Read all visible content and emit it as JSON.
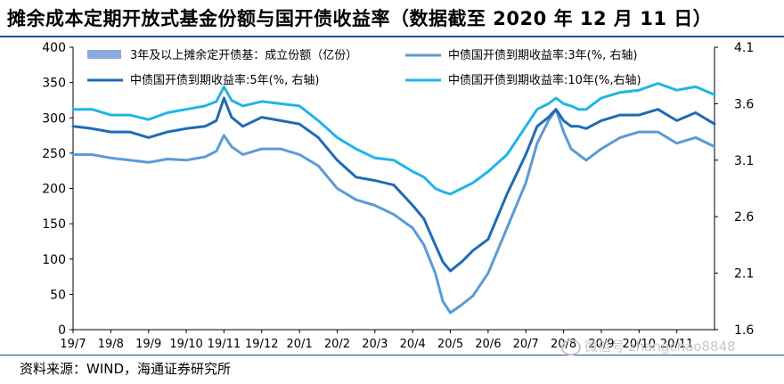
{
  "page_title": "摊余成本定期开放式基金份额与国开债收益率（数据截至 2020 年 12 月 11 日）",
  "source": "资料来源：WIND，海通证券研究所",
  "watermark": "微信号 zhangchao8848",
  "colors": {
    "bars": "#8ea9db",
    "y3": "#5b9bd5",
    "y5": "#1f6bb5",
    "y10": "#1fb5e8",
    "rule": "#1f4e9c"
  },
  "chart_data": {
    "type": "line",
    "x_tick_labels": [
      "19/7",
      "19/8",
      "19/9",
      "19/10",
      "19/11",
      "19/12",
      "20/1",
      "20/2",
      "20/3",
      "20/4",
      "20/5",
      "20/6",
      "20/7",
      "20/8",
      "20/9",
      "20/10",
      "20/11"
    ],
    "x_range": [
      0,
      17
    ],
    "y_left": {
      "range": [
        0,
        400
      ],
      "ticks": [
        0,
        50,
        100,
        150,
        200,
        250,
        300,
        350,
        400
      ]
    },
    "y_right": {
      "range": [
        1.6,
        4.1
      ],
      "ticks": [
        "1.6",
        "2.1",
        "2.6",
        "3.1",
        "3.6",
        "4.1"
      ]
    },
    "legend": [
      "3年及以上摊余定开债基：成立份额（亿份）",
      "中债国开债到期收益率:3年(%, 右轴)",
      "中债国开债到期收益率:5年(%, 右轴)",
      "中债国开债到期收益率:10年(%,右轴)"
    ],
    "series": [
      {
        "name": "中债国开债到期收益率:3年(%, 右轴)",
        "axis": "right",
        "x": [
          0,
          0.5,
          1.0,
          1.5,
          2.0,
          2.5,
          3.0,
          3.5,
          3.8,
          4.0,
          4.2,
          4.5,
          5.0,
          5.5,
          6.0,
          6.5,
          7.0,
          7.5,
          8.0,
          8.5,
          9.0,
          9.3,
          9.6,
          9.8,
          10.0,
          10.3,
          10.6,
          11.0,
          11.5,
          12.0,
          12.3,
          12.6,
          12.8,
          13.0,
          13.2,
          13.4,
          13.6,
          14.0,
          14.5,
          15.0,
          15.5,
          16.0,
          16.5,
          17.0
        ],
        "y": [
          3.15,
          3.15,
          3.12,
          3.1,
          3.08,
          3.11,
          3.1,
          3.13,
          3.18,
          3.32,
          3.22,
          3.15,
          3.2,
          3.2,
          3.15,
          3.05,
          2.85,
          2.75,
          2.7,
          2.62,
          2.5,
          2.35,
          2.1,
          1.85,
          1.75,
          1.82,
          1.9,
          2.1,
          2.5,
          2.9,
          3.25,
          3.45,
          3.55,
          3.35,
          3.2,
          3.15,
          3.1,
          3.2,
          3.3,
          3.35,
          3.35,
          3.25,
          3.3,
          3.22
        ]
      },
      {
        "name": "中债国开债到期收益率:5年(%, 右轴)",
        "axis": "right",
        "x": [
          0,
          0.5,
          1.0,
          1.5,
          2.0,
          2.5,
          3.0,
          3.5,
          3.8,
          4.0,
          4.2,
          4.5,
          5.0,
          5.5,
          6.0,
          6.5,
          7.0,
          7.5,
          8.0,
          8.5,
          9.0,
          9.3,
          9.6,
          9.8,
          10.0,
          10.3,
          10.6,
          11.0,
          11.5,
          12.0,
          12.3,
          12.6,
          12.8,
          13.0,
          13.2,
          13.4,
          13.6,
          14.0,
          14.5,
          15.0,
          15.5,
          16.0,
          16.5,
          17.0
        ],
        "y": [
          3.4,
          3.38,
          3.35,
          3.35,
          3.3,
          3.35,
          3.38,
          3.4,
          3.45,
          3.65,
          3.48,
          3.4,
          3.48,
          3.45,
          3.42,
          3.3,
          3.1,
          2.95,
          2.92,
          2.88,
          2.7,
          2.58,
          2.35,
          2.2,
          2.12,
          2.2,
          2.3,
          2.4,
          2.8,
          3.15,
          3.4,
          3.48,
          3.55,
          3.45,
          3.4,
          3.4,
          3.38,
          3.45,
          3.5,
          3.5,
          3.55,
          3.45,
          3.52,
          3.42
        ]
      },
      {
        "name": "中债国开债到期收益率:10年(%,右轴)",
        "axis": "right",
        "x": [
          0,
          0.5,
          1.0,
          1.5,
          2.0,
          2.5,
          3.0,
          3.5,
          3.8,
          4.0,
          4.2,
          4.5,
          5.0,
          5.5,
          6.0,
          6.5,
          7.0,
          7.5,
          8.0,
          8.5,
          9.0,
          9.3,
          9.6,
          9.8,
          10.0,
          10.3,
          10.6,
          11.0,
          11.5,
          12.0,
          12.3,
          12.6,
          12.8,
          13.0,
          13.2,
          13.4,
          13.6,
          14.0,
          14.5,
          15.0,
          15.5,
          16.0,
          16.5,
          17.0
        ],
        "y": [
          3.55,
          3.55,
          3.5,
          3.5,
          3.46,
          3.52,
          3.55,
          3.58,
          3.62,
          3.75,
          3.63,
          3.58,
          3.62,
          3.6,
          3.58,
          3.45,
          3.3,
          3.2,
          3.12,
          3.1,
          3.0,
          2.95,
          2.85,
          2.82,
          2.8,
          2.85,
          2.9,
          3.0,
          3.15,
          3.4,
          3.55,
          3.6,
          3.65,
          3.6,
          3.58,
          3.55,
          3.55,
          3.65,
          3.7,
          3.72,
          3.78,
          3.72,
          3.75,
          3.68
        ]
      }
    ]
  }
}
